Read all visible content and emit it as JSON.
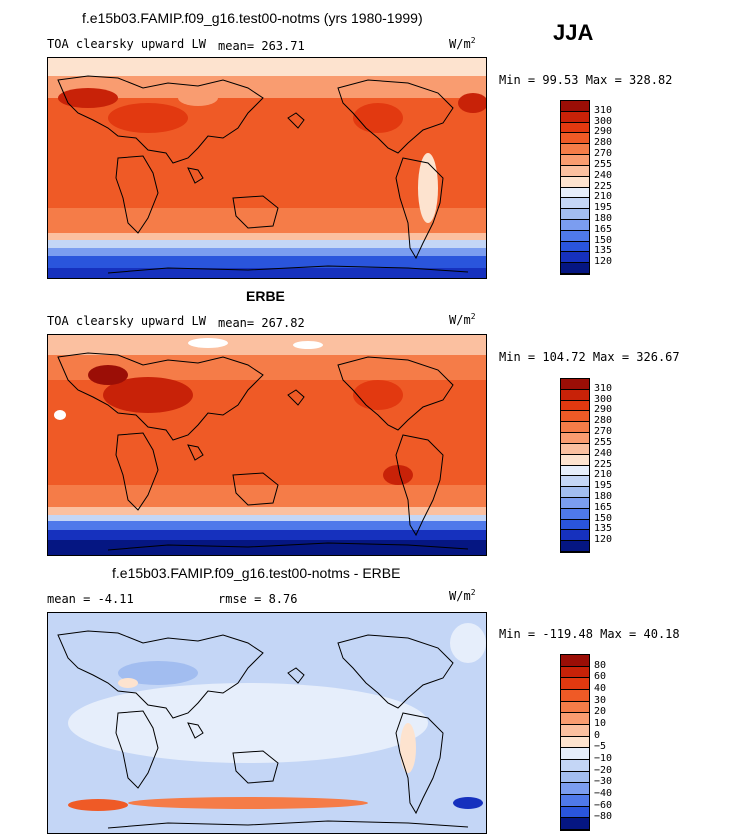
{
  "season": "JJA",
  "panels": [
    {
      "title": "f.e15b03.FAMIP.f09_g16.test00-notms (yrs 1980-1999)",
      "variable": "TOA clearsky upward LW",
      "stats": "mean= 263.71",
      "units": "W/m",
      "units_exp": "2",
      "minmax": "Min =  99.53 Max = 328.82",
      "levels": [
        "310",
        "300",
        "290",
        "280",
        "270",
        "255",
        "240",
        "225",
        "210",
        "195",
        "180",
        "165",
        "150",
        "135",
        "120"
      ],
      "colors": [
        "#9b0e06",
        "#c82208",
        "#e23910",
        "#ef5a26",
        "#f57c48",
        "#f99c70",
        "#fbc0a0",
        "#fde3cf",
        "#e6eefb",
        "#c4d6f6",
        "#a2bdf0",
        "#7b9df0",
        "#4f79ea",
        "#2a55dc",
        "#1631be",
        "#051682"
      ],
      "map_type": "model"
    },
    {
      "title": "ERBE",
      "variable": "TOA clearsky upward LW",
      "stats": "mean= 267.82",
      "units": "W/m",
      "units_exp": "2",
      "minmax": "Min = 104.72 Max = 326.67",
      "levels": [
        "310",
        "300",
        "290",
        "280",
        "270",
        "255",
        "240",
        "225",
        "210",
        "195",
        "180",
        "165",
        "150",
        "135",
        "120"
      ],
      "colors": [
        "#9b0e06",
        "#c82208",
        "#e23910",
        "#ef5a26",
        "#f57c48",
        "#f99c70",
        "#fbc0a0",
        "#fde3cf",
        "#e6eefb",
        "#c4d6f6",
        "#a2bdf0",
        "#7b9df0",
        "#4f79ea",
        "#2a55dc",
        "#1631be",
        "#051682"
      ],
      "map_type": "obs"
    },
    {
      "title": "f.e15b03.FAMIP.f09_g16.test00-notms - ERBE",
      "variable": "mean =   -4.11",
      "stats": "rmse =    8.76",
      "units": "W/m",
      "units_exp": "2",
      "minmax": "Min = -119.48 Max =  40.18",
      "levels": [
        "80",
        "60",
        "40",
        "30",
        "20",
        "10",
        "0",
        "−5",
        "−10",
        "−20",
        "−30",
        "−40",
        "−60",
        "−80"
      ],
      "colors": [
        "#9b0e06",
        "#c82208",
        "#e23910",
        "#ef5a26",
        "#f57c48",
        "#f99c70",
        "#fbc0a0",
        "#fde3cf",
        "#e6eefb",
        "#c4d6f6",
        "#a2bdf0",
        "#7b9df0",
        "#4f79ea",
        "#2a55dc",
        "#051682"
      ],
      "map_type": "diff"
    }
  ]
}
